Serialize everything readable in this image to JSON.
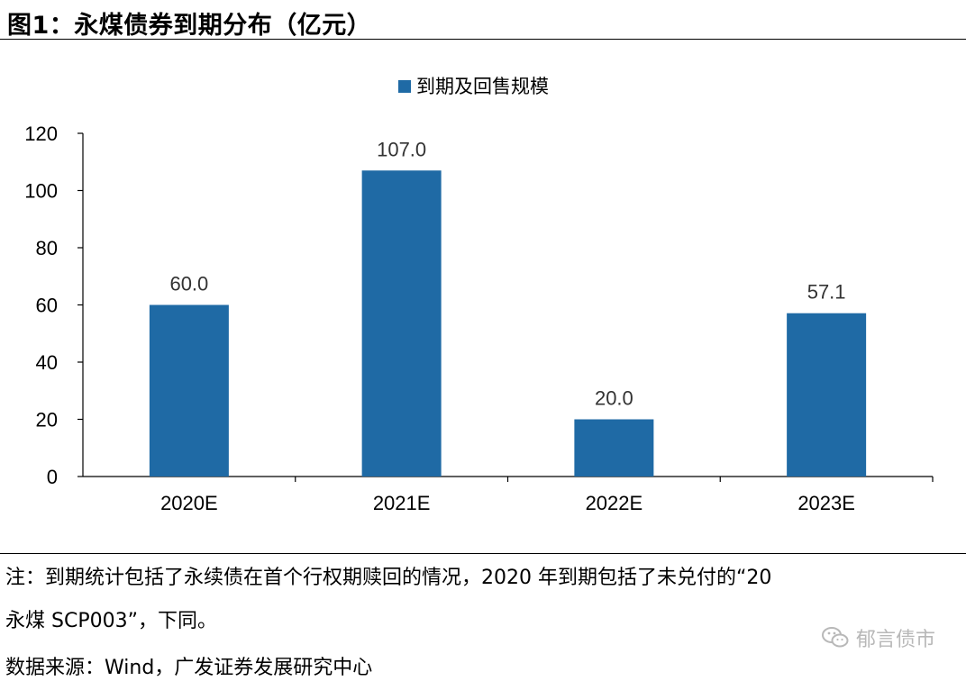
{
  "header": {
    "title": "图1：永煤债券到期分布（亿元）"
  },
  "chart_data": {
    "type": "bar",
    "title": "",
    "categories": [
      "2020E",
      "2021E",
      "2022E",
      "2023E"
    ],
    "series": [
      {
        "name": "到期及回售规模",
        "values": [
          60.0,
          107.0,
          20.0,
          57.1
        ],
        "color": "#1f6aa5"
      }
    ],
    "data_labels": [
      "60.0",
      "107.0",
      "20.0",
      "57.1"
    ],
    "xlabel": "",
    "ylabel": "",
    "ylim": [
      0,
      120
    ],
    "yticks": [
      0,
      20,
      40,
      60,
      80,
      100,
      120
    ],
    "grid": false,
    "legend_position": "top-center"
  },
  "footer": {
    "note_line1": "注：到期统计包括了永续债在首个行权期赎回的情况，2020 年到期包括了未兑付的“20",
    "note_line2": "永煤 SCP003”，下同。",
    "source": "数据来源：Wind，广发证券发展研究中心",
    "watermark_text": "郁言债市"
  }
}
